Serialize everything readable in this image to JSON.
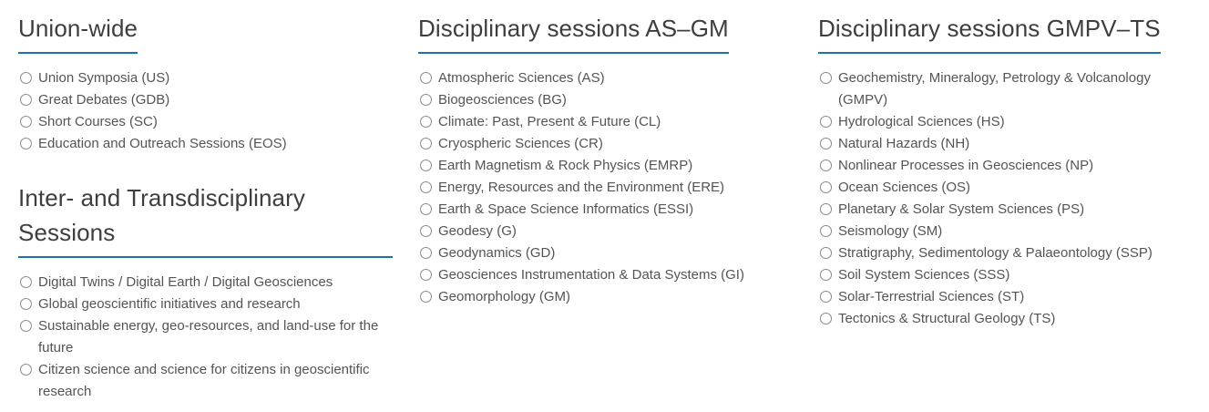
{
  "theme": {
    "accent_color": "#1a75ad",
    "heading_color": "#3e3e3e",
    "text_color": "#545454",
    "radio_border_color": "#8a8a8a",
    "page_bg": "#ffffff"
  },
  "sections": [
    {
      "title": "Union-wide",
      "options": [
        "Union Symposia (US)",
        "Great Debates (GDB)",
        "Short Courses (SC)",
        "Education and Outreach Sessions (EOS)"
      ]
    },
    {
      "title": "Inter- and Transdisciplinary Sessions",
      "options": [
        "Digital Twins / Digital Earth / Digital Geosciences",
        "Global geoscientific initiatives and research",
        "Sustainable energy, geo-resources, and land-use for the future",
        "Citizen science and science for citizens in geoscientific research"
      ]
    },
    {
      "title": "Disciplinary sessions AS–GM",
      "options": [
        "Atmospheric Sciences (AS)",
        "Biogeosciences (BG)",
        "Climate: Past, Present & Future (CL)",
        "Cryospheric Sciences (CR)",
        "Earth Magnetism & Rock Physics (EMRP)",
        "Energy, Resources and the Environment (ERE)",
        "Earth & Space Science Informatics (ESSI)",
        "Geodesy (G)",
        "Geodynamics (GD)",
        "Geosciences Instrumentation & Data Systems (GI)",
        "Geomorphology (GM)"
      ]
    },
    {
      "title": "Disciplinary sessions GMPV–TS",
      "options": [
        "Geochemistry, Mineralogy, Petrology & Volcanology (GMPV)",
        "Hydrological Sciences (HS)",
        "Natural Hazards (NH)",
        "Nonlinear Processes in Geosciences (NP)",
        "Ocean Sciences (OS)",
        "Planetary & Solar System Sciences (PS)",
        "Seismology (SM)",
        "Stratigraphy, Sedimentology & Palaeontology (SSP)",
        "Soil System Sciences (SSS)",
        "Solar-Terrestrial Sciences (ST)",
        "Tectonics & Structural Geology (TS)"
      ]
    }
  ]
}
